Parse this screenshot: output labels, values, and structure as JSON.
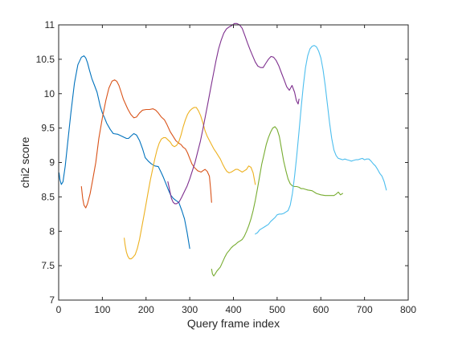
{
  "chart_data": {
    "type": "line",
    "title": "",
    "xlabel": "Query frame index",
    "ylabel": "chi2 score",
    "xlim": [
      0,
      800
    ],
    "ylim": [
      7,
      11
    ],
    "xticks": [
      0,
      100,
      200,
      300,
      400,
      500,
      600,
      700,
      800
    ],
    "yticks": [
      7,
      7.5,
      8,
      8.5,
      9,
      9.5,
      10,
      10.5,
      11
    ],
    "xtick_labels": [
      "0",
      "100",
      "200",
      "300",
      "400",
      "500",
      "600",
      "700",
      "800"
    ],
    "ytick_labels": [
      "7",
      "7.5",
      "8",
      "8.5",
      "9",
      "9.5",
      "10",
      "10.5",
      "11"
    ],
    "grid": false,
    "box": true,
    "series": [
      {
        "color": "#0072BD",
        "x": [
          1,
          3,
          6,
          10,
          15,
          20,
          28,
          36,
          44,
          52,
          58,
          62,
          66,
          70,
          76,
          82,
          88,
          95,
          100,
          105,
          110,
          118,
          125,
          135,
          145,
          155,
          160,
          165,
          172,
          178,
          185,
          192,
          198,
          205,
          212,
          220,
          228,
          235,
          240,
          245,
          250,
          256,
          262,
          268,
          275,
          282,
          288,
          294,
          300
        ],
        "y": [
          8.85,
          8.75,
          8.68,
          8.72,
          8.95,
          9.25,
          9.72,
          10.15,
          10.42,
          10.53,
          10.55,
          10.52,
          10.45,
          10.35,
          10.22,
          10.12,
          10.02,
          9.82,
          9.72,
          9.65,
          9.57,
          9.48,
          9.42,
          9.41,
          9.38,
          9.35,
          9.35,
          9.38,
          9.42,
          9.4,
          9.32,
          9.2,
          9.07,
          9.02,
          8.98,
          8.95,
          8.94,
          8.85,
          8.78,
          8.7,
          8.62,
          8.53,
          8.48,
          8.45,
          8.42,
          8.3,
          8.18,
          7.98,
          7.75
        ]
      },
      {
        "color": "#D95319",
        "x": [
          52,
          55,
          58,
          62,
          66,
          72,
          78,
          85,
          92,
          100,
          108,
          115,
          122,
          128,
          133,
          138,
          143,
          148,
          153,
          158,
          165,
          172,
          178,
          185,
          192,
          200,
          208,
          216,
          222,
          228,
          235,
          242,
          248,
          255,
          262,
          268,
          275,
          280,
          285,
          290,
          295,
          300,
          305,
          310,
          315,
          318,
          322,
          326,
          330,
          335,
          340,
          345,
          348,
          350
        ],
        "y": [
          8.65,
          8.48,
          8.38,
          8.34,
          8.4,
          8.55,
          8.75,
          9.0,
          9.35,
          9.65,
          9.9,
          10.08,
          10.18,
          10.2,
          10.18,
          10.12,
          10.02,
          9.92,
          9.85,
          9.78,
          9.7,
          9.65,
          9.66,
          9.72,
          9.76,
          9.77,
          9.77,
          9.78,
          9.76,
          9.72,
          9.66,
          9.62,
          9.55,
          9.45,
          9.38,
          9.32,
          9.28,
          9.26,
          9.22,
          9.2,
          9.14,
          9.06,
          8.98,
          8.93,
          8.9,
          8.88,
          8.87,
          8.86,
          8.88,
          8.9,
          8.87,
          8.8,
          8.6,
          8.42
        ]
      },
      {
        "color": "#EDB120",
        "x": [
          150,
          152,
          155,
          158,
          162,
          166,
          170,
          175,
          180,
          185,
          190,
          195,
          200,
          205,
          210,
          215,
          220,
          225,
          230,
          235,
          240,
          245,
          250,
          255,
          260,
          265,
          270,
          275,
          280,
          285,
          290,
          295,
          300,
          305,
          310,
          315,
          320,
          325,
          330,
          335,
          340,
          345,
          350,
          355,
          360,
          365,
          370,
          375,
          380,
          385,
          390,
          395,
          400,
          405,
          410,
          415,
          420,
          425,
          430,
          435,
          440,
          445,
          450
        ],
        "y": [
          7.9,
          7.8,
          7.7,
          7.64,
          7.6,
          7.6,
          7.62,
          7.66,
          7.75,
          7.88,
          8.05,
          8.22,
          8.4,
          8.58,
          8.75,
          8.9,
          9.05,
          9.18,
          9.28,
          9.34,
          9.36,
          9.36,
          9.33,
          9.3,
          9.25,
          9.23,
          9.25,
          9.3,
          9.4,
          9.52,
          9.62,
          9.7,
          9.75,
          9.78,
          9.8,
          9.8,
          9.75,
          9.68,
          9.58,
          9.46,
          9.38,
          9.32,
          9.26,
          9.2,
          9.15,
          9.1,
          9.05,
          8.98,
          8.92,
          8.87,
          8.85,
          8.86,
          8.88,
          8.9,
          8.9,
          8.88,
          8.86,
          8.88,
          8.9,
          8.95,
          8.93,
          8.85,
          8.68
        ]
      },
      {
        "color": "#7E2F8E",
        "x": [
          250,
          254,
          258,
          262,
          266,
          270,
          276,
          282,
          288,
          294,
          300,
          306,
          312,
          318,
          324,
          330,
          336,
          342,
          348,
          354,
          360,
          366,
          372,
          378,
          384,
          390,
          396,
          402,
          408,
          414,
          420,
          426,
          432,
          438,
          444,
          450,
          456,
          462,
          468,
          474,
          480,
          486,
          492,
          498,
          504,
          510,
          516,
          522,
          528,
          534,
          540,
          544,
          548,
          550
        ],
        "y": [
          8.72,
          8.6,
          8.48,
          8.42,
          8.4,
          8.4,
          8.43,
          8.5,
          8.58,
          8.66,
          8.76,
          8.88,
          9.0,
          9.15,
          9.3,
          9.48,
          9.68,
          9.88,
          10.08,
          10.28,
          10.48,
          10.65,
          10.78,
          10.88,
          10.94,
          10.97,
          10.99,
          11.02,
          11.02,
          11.0,
          10.95,
          10.85,
          10.74,
          10.64,
          10.55,
          10.46,
          10.4,
          10.38,
          10.38,
          10.44,
          10.5,
          10.54,
          10.53,
          10.48,
          10.4,
          10.3,
          10.2,
          10.1,
          10.05,
          10.12,
          10.02,
          9.9,
          9.85,
          9.92
        ]
      },
      {
        "color": "#77AC30",
        "x": [
          350,
          352,
          355,
          358,
          362,
          366,
          370,
          375,
          380,
          385,
          390,
          395,
          400,
          405,
          410,
          415,
          420,
          425,
          430,
          435,
          440,
          445,
          450,
          455,
          460,
          465,
          470,
          475,
          480,
          485,
          490,
          495,
          500,
          505,
          510,
          515,
          520,
          525,
          530,
          535,
          540,
          545,
          550,
          555,
          560,
          570,
          580,
          590,
          600,
          610,
          620,
          630,
          635,
          640,
          645,
          650
        ],
        "y": [
          7.45,
          7.38,
          7.35,
          7.38,
          7.42,
          7.45,
          7.48,
          7.55,
          7.62,
          7.68,
          7.72,
          7.76,
          7.79,
          7.81,
          7.84,
          7.86,
          7.88,
          7.93,
          8.0,
          8.08,
          8.18,
          8.3,
          8.45,
          8.62,
          8.8,
          8.98,
          9.12,
          9.26,
          9.36,
          9.44,
          9.5,
          9.52,
          9.48,
          9.38,
          9.2,
          9.02,
          8.88,
          8.76,
          8.69,
          8.66,
          8.65,
          8.65,
          8.64,
          8.62,
          8.62,
          8.6,
          8.59,
          8.55,
          8.53,
          8.52,
          8.52,
          8.52,
          8.54,
          8.57,
          8.53,
          8.55
        ]
      },
      {
        "color": "#4DBEEE",
        "x": [
          450,
          455,
          460,
          465,
          470,
          475,
          480,
          485,
          490,
          495,
          500,
          505,
          510,
          515,
          520,
          525,
          530,
          535,
          540,
          545,
          550,
          555,
          560,
          565,
          570,
          575,
          580,
          585,
          590,
          595,
          600,
          605,
          610,
          615,
          620,
          625,
          630,
          635,
          640,
          645,
          650,
          655,
          660,
          665,
          670,
          675,
          680,
          685,
          690,
          695,
          700,
          705,
          710,
          715,
          720,
          725,
          730,
          735,
          740,
          745,
          750
        ],
        "y": [
          7.96,
          7.98,
          8.02,
          8.04,
          8.06,
          8.08,
          8.1,
          8.14,
          8.17,
          8.2,
          8.24,
          8.25,
          8.25,
          8.26,
          8.28,
          8.3,
          8.38,
          8.55,
          8.8,
          9.1,
          9.45,
          9.8,
          10.12,
          10.38,
          10.55,
          10.65,
          10.69,
          10.7,
          10.68,
          10.62,
          10.52,
          10.35,
          10.12,
          9.85,
          9.58,
          9.35,
          9.18,
          9.1,
          9.06,
          9.05,
          9.04,
          9.05,
          9.04,
          9.03,
          9.02,
          9.03,
          9.04,
          9.04,
          9.05,
          9.06,
          9.04,
          9.05,
          9.05,
          9.02,
          8.98,
          8.95,
          8.9,
          8.84,
          8.8,
          8.72,
          8.6
        ]
      }
    ]
  }
}
